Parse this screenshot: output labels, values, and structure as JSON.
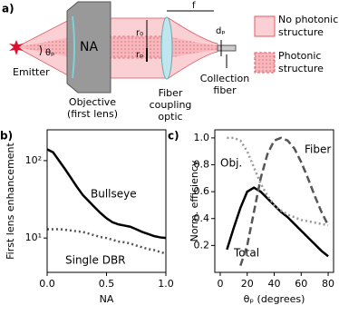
{
  "diagram": {
    "panel_label": "a)",
    "emitter": "Emitter",
    "angle": "θₚ",
    "na": "NA",
    "objective": [
      "Objective",
      "(first lens)"
    ],
    "r0": "r₀",
    "rp": "rₚ",
    "f": "f",
    "dp": "dₚ",
    "coupling_optic": [
      "Fiber",
      "coupling",
      "optic"
    ],
    "collection_fiber": [
      "Collection",
      "fiber"
    ],
    "legend": [
      {
        "label": [
          "No photonic",
          "structure"
        ]
      },
      {
        "label": [
          "Photonic",
          "structure"
        ]
      }
    ]
  },
  "chart_data": [
    {
      "type": "line",
      "panel_label": "b)",
      "x_label": "NA",
      "y_label": "First lens enhancement",
      "log_y": true,
      "xlim": [
        0,
        1
      ],
      "ylim": [
        3.6,
        250
      ],
      "xticks": [
        {
          "value": 0,
          "label": "0.0"
        },
        0.5,
        {
          "value": 1,
          "label": "1.0"
        }
      ],
      "yticks": [
        {
          "value": 10,
          "label": "10¹"
        },
        {
          "value": 100,
          "label": "10²"
        }
      ],
      "x": [
        0,
        0.05,
        0.1,
        0.15,
        0.2,
        0.25,
        0.3,
        0.35,
        0.4,
        0.45,
        0.5,
        0.55,
        0.6,
        0.65,
        0.7,
        0.75,
        0.8,
        0.85,
        0.9,
        0.95,
        1.0
      ],
      "series": [
        {
          "name": "Bullseye",
          "color": "#000000",
          "linestyle": "solid",
          "values": [
            140,
            128,
            100,
            78,
            60,
            46,
            36,
            30,
            25,
            21,
            18,
            16,
            15,
            14.5,
            14,
            13,
            12,
            11.3,
            10.6,
            10.2,
            10
          ]
        },
        {
          "name": "Single DBR",
          "color": "#555555",
          "linestyle": "dotted",
          "values": [
            13,
            13,
            13,
            12.8,
            12.5,
            12.2,
            12,
            11.4,
            10.8,
            10.3,
            10,
            9.5,
            9,
            8.8,
            8.5,
            8,
            7.6,
            7.2,
            7,
            6.6,
            6.3
          ]
        }
      ]
    },
    {
      "type": "line",
      "panel_label": "c)",
      "x_label": "θₚ (degrees)",
      "y_label": "Norm. efficiency",
      "log_y": false,
      "xlim": [
        -4,
        84
      ],
      "ylim": [
        0,
        1.06
      ],
      "xticks": [
        0,
        20,
        40,
        60,
        80
      ],
      "yticks": [
        0.2,
        0.4,
        0.6,
        0.8,
        {
          "value": 1,
          "label": "1.0"
        }
      ],
      "x": [
        5,
        10,
        15,
        20,
        25,
        30,
        35,
        40,
        45,
        50,
        55,
        60,
        65,
        70,
        75,
        80
      ],
      "series": [
        {
          "name": "Total",
          "color": "#000000",
          "linestyle": "solid",
          "values": [
            0.17,
            0.33,
            0.48,
            0.6,
            0.63,
            0.6,
            0.55,
            0.5,
            0.45,
            0.41,
            0.36,
            0.31,
            0.26,
            0.21,
            0.16,
            0.12
          ]
        },
        {
          "name": "Fiber",
          "color": "#555555",
          "linestyle": "dashed",
          "values": [
            null,
            null,
            0.05,
            0.2,
            0.45,
            0.7,
            0.88,
            0.98,
            1.0,
            0.98,
            0.92,
            0.82,
            0.7,
            0.57,
            0.45,
            0.35
          ]
        },
        {
          "name": "Obj.",
          "color": "#999999",
          "linestyle": "dotted",
          "values": [
            1.0,
            1.0,
            0.98,
            0.9,
            0.78,
            0.66,
            0.57,
            0.5,
            0.46,
            0.43,
            0.41,
            0.39,
            0.38,
            0.37,
            0.36,
            0.35
          ]
        }
      ]
    }
  ]
}
